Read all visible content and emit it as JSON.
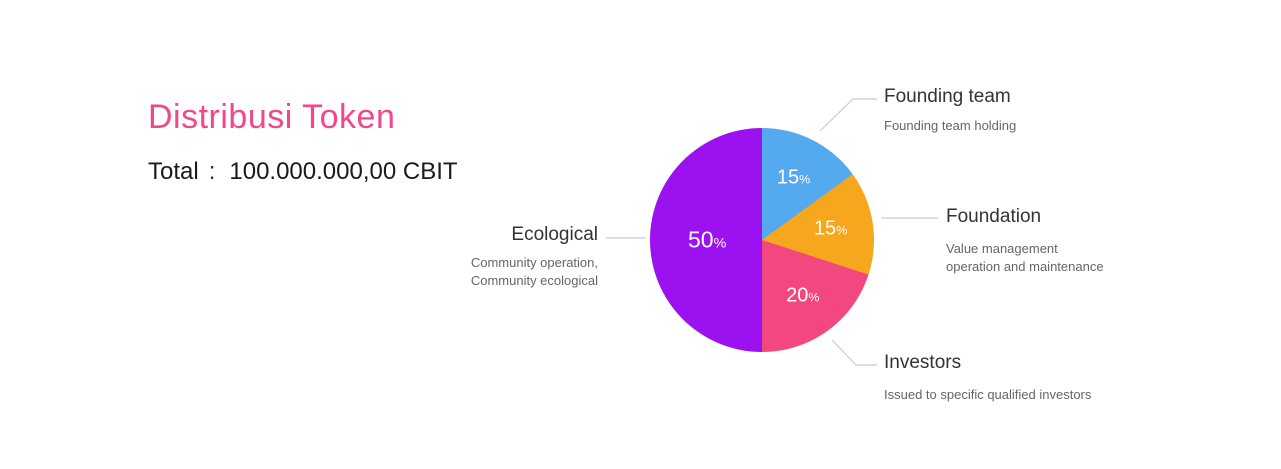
{
  "header": {
    "title": "Distribusi Token",
    "total_label": "Total",
    "total_separator": ":",
    "total_value": "100.000.000,00 CBIT"
  },
  "chart_data": {
    "type": "pie",
    "title": "Distribusi Token",
    "total": "100.000.000,00 CBIT",
    "start_angle_deg": 0,
    "direction": "clockwise",
    "unit": "%",
    "slices": [
      {
        "label": "Founding team",
        "value": 15,
        "unit": "%",
        "color": "#55A9EF",
        "description": "Founding team holding"
      },
      {
        "label": "Foundation",
        "value": 15,
        "unit": "%",
        "color": "#F7A71E",
        "description": "Value management operation and maintenance"
      },
      {
        "label": "Investors",
        "value": 20,
        "unit": "%",
        "color": "#F3487F",
        "description": "Issued to specific qualified investors"
      },
      {
        "label": "Ecological",
        "value": 50,
        "unit": "%",
        "color": "#9B11F0",
        "description": "Community operation, Community ecological"
      }
    ]
  },
  "callouts": {
    "founding_team": {
      "label": "Founding team",
      "desc_line1": "Founding team holding"
    },
    "foundation": {
      "label": "Foundation",
      "desc_line1": "Value management",
      "desc_line2": "operation and maintenance"
    },
    "investors": {
      "label": "Investors",
      "desc_line1": "Issued to specific qualified investors"
    },
    "ecological": {
      "label": "Ecological",
      "desc_line1": "Community operation,",
      "desc_line2": "Community ecological"
    }
  },
  "colors": {
    "title": "#F2478C",
    "label_text": "#333333",
    "desc_text": "#666666",
    "leader_line": "#CCCCCC",
    "percent_text": "#FFFFFF"
  }
}
